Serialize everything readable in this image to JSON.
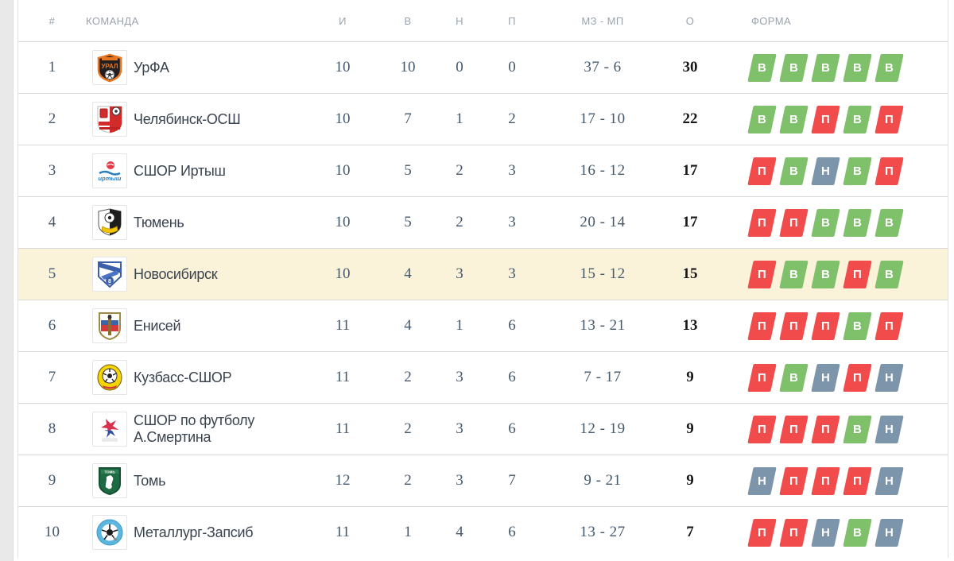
{
  "table": {
    "headers": {
      "pos": "#",
      "team": "КОМАНДА",
      "played": "И",
      "wins": "В",
      "draws": "Н",
      "losses": "П",
      "goals": "МЗ - МП",
      "points": "О",
      "form": "ФОРМА"
    },
    "rows": [
      {
        "pos": "1",
        "team": "УрФА",
        "logo": "urfa-crest-icon",
        "played": "10",
        "wins": "10",
        "draws": "0",
        "losses": "0",
        "goals": "37 - 6",
        "points": "30",
        "form": [
          "В",
          "В",
          "В",
          "В",
          "В"
        ],
        "highlighted": false
      },
      {
        "pos": "2",
        "team": "Челябинск-ОСШ",
        "logo": "chelyabinsk-crest-icon",
        "played": "10",
        "wins": "7",
        "draws": "1",
        "losses": "2",
        "goals": "17 - 10",
        "points": "22",
        "form": [
          "В",
          "В",
          "П",
          "В",
          "П"
        ],
        "highlighted": false
      },
      {
        "pos": "3",
        "team": "СШОР Иртыш",
        "logo": "irtysh-crest-icon",
        "played": "10",
        "wins": "5",
        "draws": "2",
        "losses": "3",
        "goals": "16 - 12",
        "points": "17",
        "form": [
          "П",
          "В",
          "Н",
          "В",
          "П"
        ],
        "highlighted": false
      },
      {
        "pos": "4",
        "team": "Тюмень",
        "logo": "tyumen-crest-icon",
        "played": "10",
        "wins": "5",
        "draws": "2",
        "losses": "3",
        "goals": "20 - 14",
        "points": "17",
        "form": [
          "П",
          "П",
          "В",
          "В",
          "В"
        ],
        "highlighted": false
      },
      {
        "pos": "5",
        "team": "Новосибирск",
        "logo": "novosibirsk-crest-icon",
        "played": "10",
        "wins": "4",
        "draws": "3",
        "losses": "3",
        "goals": "15 - 12",
        "points": "15",
        "form": [
          "П",
          "В",
          "В",
          "П",
          "В"
        ],
        "highlighted": true
      },
      {
        "pos": "6",
        "team": "Енисей",
        "logo": "enisey-crest-icon",
        "played": "11",
        "wins": "4",
        "draws": "1",
        "losses": "6",
        "goals": "13 - 21",
        "points": "13",
        "form": [
          "П",
          "П",
          "П",
          "В",
          "П"
        ],
        "highlighted": false
      },
      {
        "pos": "7",
        "team": "Кузбасс-СШОР",
        "logo": "kuzbass-crest-icon",
        "played": "11",
        "wins": "2",
        "draws": "3",
        "losses": "6",
        "goals": "7 - 17",
        "points": "9",
        "form": [
          "П",
          "В",
          "Н",
          "П",
          "Н"
        ],
        "highlighted": false
      },
      {
        "pos": "8",
        "team": "СШОР по футболу А.Смертина",
        "logo": "smertina-crest-icon",
        "played": "11",
        "wins": "2",
        "draws": "3",
        "losses": "6",
        "goals": "12 - 19",
        "points": "9",
        "form": [
          "П",
          "П",
          "П",
          "В",
          "Н"
        ],
        "highlighted": false
      },
      {
        "pos": "9",
        "team": "Томь",
        "logo": "tom-crest-icon",
        "played": "12",
        "wins": "2",
        "draws": "3",
        "losses": "7",
        "goals": "9 - 21",
        "points": "9",
        "form": [
          "Н",
          "П",
          "П",
          "П",
          "Н"
        ],
        "highlighted": false
      },
      {
        "pos": "10",
        "team": "Металлург-Запсиб",
        "logo": "metallurg-crest-icon",
        "played": "11",
        "wins": "1",
        "draws": "4",
        "losses": "6",
        "goals": "13 - 27",
        "points": "7",
        "form": [
          "П",
          "П",
          "Н",
          "В",
          "Н"
        ],
        "highlighted": false
      }
    ]
  },
  "form_colors": {
    "В": "#7fc06a",
    "Н": "#7d95ab",
    "П": "#f14b4b"
  },
  "form_meaning": {
    "В": "win",
    "Н": "draw",
    "П": "loss"
  },
  "highlight_color": "#fbf2da"
}
